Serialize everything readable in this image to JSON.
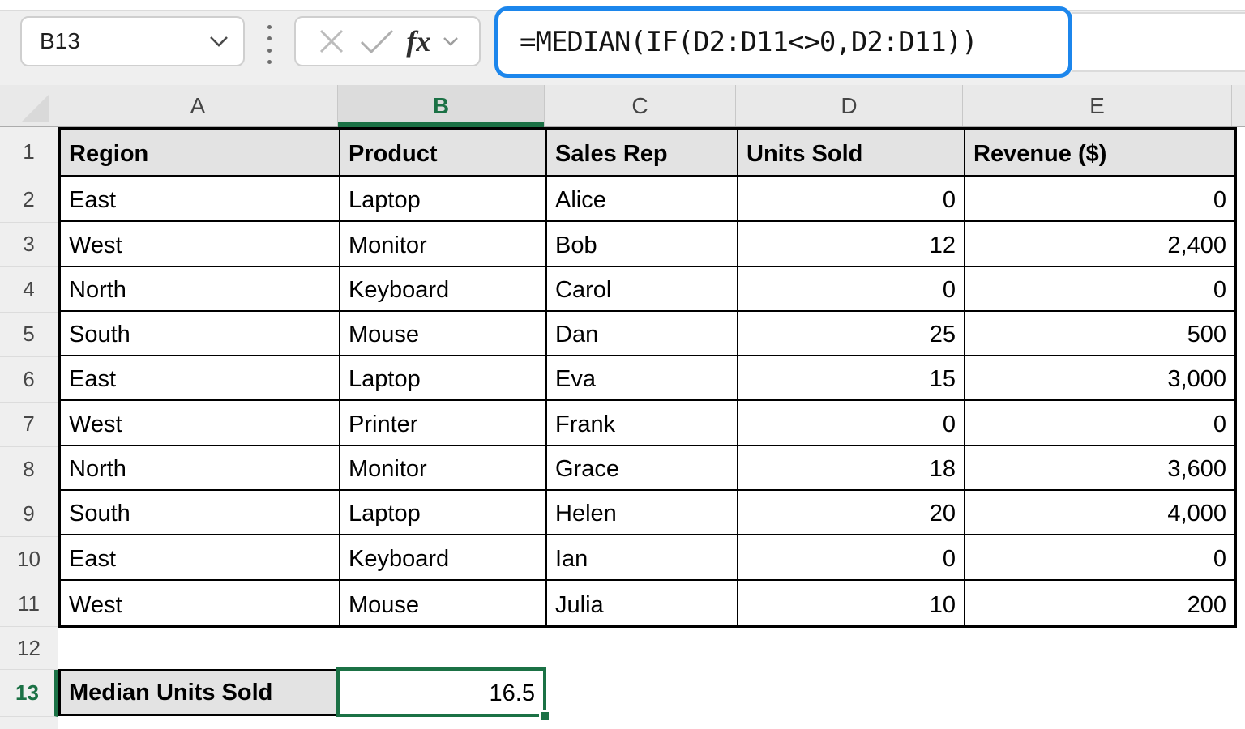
{
  "name_box": {
    "value": "B13"
  },
  "formula_bar": {
    "fx_label": "fx",
    "formula": "=MEDIAN(IF(D2:D11<>0,D2:D11))",
    "icons": [
      "cancel-x-icon",
      "check-icon",
      "function-fx-icon",
      "chevron-down-icon"
    ]
  },
  "selection": {
    "cell": "B13",
    "row": 13,
    "column": "B"
  },
  "colors": {
    "selection_green": "#1B7145",
    "focus_blue": "#1C86EC"
  },
  "columns": [
    {
      "letter": "A",
      "header": "Region"
    },
    {
      "letter": "B",
      "header": "Product"
    },
    {
      "letter": "C",
      "header": "Sales Rep"
    },
    {
      "letter": "D",
      "header": "Units Sold"
    },
    {
      "letter": "E",
      "header": "Revenue ($)"
    }
  ],
  "row_numbers": [
    1,
    2,
    3,
    4,
    5,
    6,
    7,
    8,
    9,
    10,
    11,
    12,
    13
  ],
  "rows": [
    [
      "East",
      "Laptop",
      "Alice",
      "0",
      "0"
    ],
    [
      "West",
      "Monitor",
      "Bob",
      "12",
      "2,400"
    ],
    [
      "North",
      "Keyboard",
      "Carol",
      "0",
      "0"
    ],
    [
      "South",
      "Mouse",
      "Dan",
      "25",
      "500"
    ],
    [
      "East",
      "Laptop",
      "Eva",
      "15",
      "3,000"
    ],
    [
      "West",
      "Printer",
      "Frank",
      "0",
      "0"
    ],
    [
      "North",
      "Monitor",
      "Grace",
      "18",
      "3,600"
    ],
    [
      "South",
      "Laptop",
      "Helen",
      "20",
      "4,000"
    ],
    [
      "East",
      "Keyboard",
      "Ian",
      "0",
      "0"
    ],
    [
      "West",
      "Mouse",
      "Julia",
      "10",
      "200"
    ]
  ],
  "footer": {
    "label": "Median Units Sold",
    "value": "16.5"
  }
}
